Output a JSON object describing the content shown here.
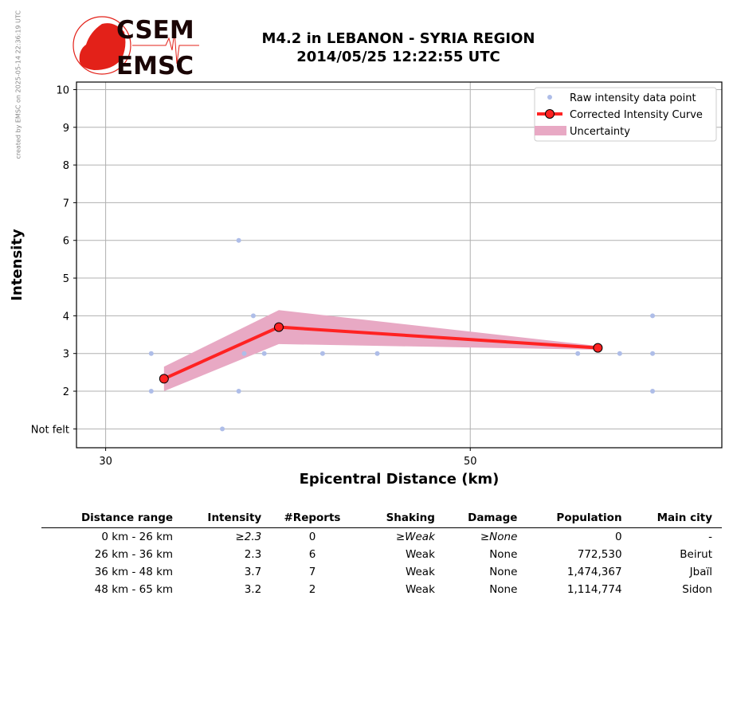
{
  "header": {
    "title_line1": "M4.2 in LEBANON - SYRIA REGION",
    "title_line2": "2014/05/25 12:22:55 UTC",
    "credit": "created by EMSC on 2025-05-14 22:36:19 UTC",
    "logo_text_top": "CSEM",
    "logo_text_bottom": "EMSC"
  },
  "chart_data": {
    "type": "line",
    "xlabel": "Epicentral Distance (km)",
    "ylabel": "Intensity",
    "xlim": [
      28.4,
      63.8
    ],
    "ylim": [
      0.5,
      10.2
    ],
    "xticks": [
      30,
      50
    ],
    "yticks": [
      {
        "v": 1,
        "label": "Not felt"
      },
      {
        "v": 2,
        "label": "2"
      },
      {
        "v": 3,
        "label": "3"
      },
      {
        "v": 4,
        "label": "4"
      },
      {
        "v": 5,
        "label": "5"
      },
      {
        "v": 6,
        "label": "6"
      },
      {
        "v": 7,
        "label": "7"
      },
      {
        "v": 8,
        "label": "8"
      },
      {
        "v": 9,
        "label": "9"
      },
      {
        "v": 10,
        "label": "10"
      }
    ],
    "grid": true,
    "legend_position": "top-right",
    "series": [
      {
        "name": "Raw intensity data point",
        "color": "#aebde8",
        "points": [
          [
            32.5,
            3
          ],
          [
            32.5,
            2
          ],
          [
            37.3,
            6
          ],
          [
            38.1,
            4
          ],
          [
            37.6,
            3
          ],
          [
            38.7,
            3
          ],
          [
            37.3,
            2
          ],
          [
            36.4,
            1
          ],
          [
            41.9,
            3
          ],
          [
            44.9,
            3
          ],
          [
            55.9,
            3
          ],
          [
            58.2,
            3
          ],
          [
            60.0,
            4
          ],
          [
            60.0,
            3
          ],
          [
            60.0,
            2
          ]
        ]
      },
      {
        "name": "Corrected Intensity Curve",
        "color": "#ff2222",
        "points": [
          [
            33.2,
            2.33
          ],
          [
            39.5,
            3.7
          ],
          [
            57.0,
            3.15
          ]
        ]
      },
      {
        "name": "Uncertainty",
        "color": "#e8a9c4",
        "upper": [
          [
            33.2,
            2.65
          ],
          [
            39.5,
            4.15
          ],
          [
            57.0,
            3.2
          ]
        ],
        "lower": [
          [
            33.2,
            2.0
          ],
          [
            39.5,
            3.25
          ],
          [
            57.0,
            3.1
          ]
        ]
      }
    ]
  },
  "table": {
    "headers": [
      "Distance range",
      "Intensity",
      "#Reports",
      "Shaking",
      "Damage",
      "Population",
      "Main city"
    ],
    "rows": [
      [
        "0 km -   26 km",
        "≥2.3",
        "0",
        "≥Weak",
        "≥None",
        "0",
        "-"
      ],
      [
        "26 km -   36 km",
        "2.3",
        "6",
        "Weak",
        "None",
        "772,530",
        "Beirut"
      ],
      [
        "36 km -   48 km",
        "3.7",
        "7",
        "Weak",
        "None",
        "1,474,367",
        "Jbaïl"
      ],
      [
        "48 km -   65 km",
        "3.2",
        "2",
        "Weak",
        "None",
        "1,114,774",
        "Sidon"
      ]
    ]
  }
}
